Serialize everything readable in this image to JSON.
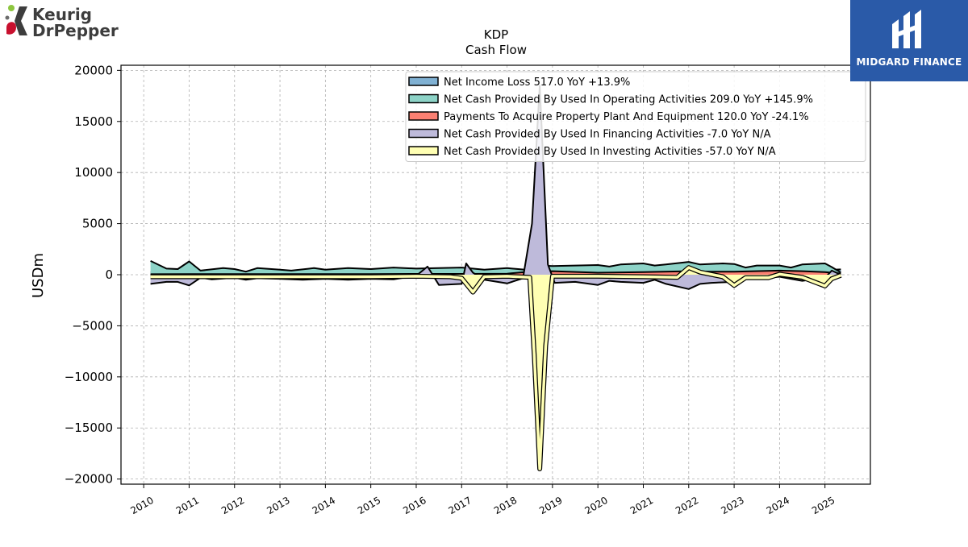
{
  "brand": {
    "left_logo_line1": "Keurig",
    "left_logo_line2": "DrPepper",
    "right_logo_text": "MIDGARD FINANCE"
  },
  "chart_data": {
    "type": "area",
    "title": "KDP",
    "subtitle": "Cash Flow",
    "ylabel": "USDm",
    "xlabel": "",
    "ylim": [
      -20500,
      20500
    ],
    "xlim": [
      2009.5,
      2026.0
    ],
    "yticks": [
      20000,
      15000,
      10000,
      5000,
      0,
      -5000,
      -10000,
      -15000,
      -20000
    ],
    "ytick_labels": [
      "20000",
      "15000",
      "10000",
      "5000",
      "0",
      "−5000",
      "−10000",
      "−15000",
      "−20000"
    ],
    "xticks": [
      2010,
      2011,
      2012,
      2013,
      2014,
      2015,
      2016,
      2017,
      2018,
      2019,
      2020,
      2021,
      2022,
      2023,
      2024,
      2025
    ],
    "xtick_labels": [
      "2010",
      "2011",
      "2012",
      "2013",
      "2014",
      "2015",
      "2016",
      "2017",
      "2018",
      "2019",
      "2020",
      "2021",
      "2022",
      "2023",
      "2024",
      "2025"
    ],
    "grid": true,
    "legend_position": "top-right",
    "series": [
      {
        "name": "Net Income Loss",
        "legend_label": "Net Income Loss  517.0 YoY +13.9%",
        "color": "#80b1d3",
        "points": [
          [
            2010.15,
            250
          ],
          [
            2010.5,
            220
          ],
          [
            2011,
            300
          ],
          [
            2011.5,
            250
          ],
          [
            2012,
            300
          ],
          [
            2012.5,
            280
          ],
          [
            2013,
            300
          ],
          [
            2013.5,
            330
          ],
          [
            2014,
            320
          ],
          [
            2014.5,
            350
          ],
          [
            2015,
            350
          ],
          [
            2015.5,
            380
          ],
          [
            2016,
            330
          ],
          [
            2016.5,
            400
          ],
          [
            2017,
            380
          ],
          [
            2017.5,
            420
          ],
          [
            2018,
            450
          ],
          [
            2018.5,
            500
          ],
          [
            2019,
            350
          ],
          [
            2019.5,
            380
          ],
          [
            2020,
            420
          ],
          [
            2020.5,
            450
          ],
          [
            2021,
            500
          ],
          [
            2021.5,
            520
          ],
          [
            2022,
            480
          ],
          [
            2022.5,
            500
          ],
          [
            2023,
            700
          ],
          [
            2023.5,
            550
          ],
          [
            2024,
            800
          ],
          [
            2024.5,
            600
          ],
          [
            2025,
            450
          ],
          [
            2025.35,
            517
          ]
        ]
      },
      {
        "name": "Net Cash Provided By Used In Operating Activities",
        "legend_label": "Net Cash Provided By Used In Operating Activities  209.0 YoY +145.9%",
        "color": "#8dd3c7",
        "points": [
          [
            2010.15,
            1350
          ],
          [
            2010.5,
            600
          ],
          [
            2010.75,
            550
          ],
          [
            2011,
            1300
          ],
          [
            2011.25,
            400
          ],
          [
            2011.75,
            650
          ],
          [
            2012,
            550
          ],
          [
            2012.25,
            300
          ],
          [
            2012.5,
            650
          ],
          [
            2013,
            500
          ],
          [
            2013.25,
            400
          ],
          [
            2013.75,
            650
          ],
          [
            2014,
            500
          ],
          [
            2014.5,
            650
          ],
          [
            2015,
            550
          ],
          [
            2015.5,
            700
          ],
          [
            2016,
            600
          ],
          [
            2016.5,
            650
          ],
          [
            2017,
            700
          ],
          [
            2017.5,
            500
          ],
          [
            2018,
            650
          ],
          [
            2018.5,
            450
          ],
          [
            2018.75,
            900
          ],
          [
            2019,
            850
          ],
          [
            2019.5,
            900
          ],
          [
            2020,
            950
          ],
          [
            2020.25,
            800
          ],
          [
            2020.5,
            1000
          ],
          [
            2021,
            1100
          ],
          [
            2021.25,
            900
          ],
          [
            2021.5,
            1000
          ],
          [
            2022,
            1250
          ],
          [
            2022.25,
            1000
          ],
          [
            2022.75,
            1100
          ],
          [
            2023,
            1050
          ],
          [
            2023.25,
            700
          ],
          [
            2023.5,
            900
          ],
          [
            2024,
            900
          ],
          [
            2024.25,
            700
          ],
          [
            2024.5,
            1000
          ],
          [
            2025,
            1100
          ],
          [
            2025.15,
            750
          ],
          [
            2025.35,
            209
          ]
        ]
      },
      {
        "name": "Payments To Acquire Property Plant And Equipment",
        "legend_label": "Payments To Acquire Property Plant And Equipment  120.0 YoY -24.1%",
        "color": "#fb8072",
        "points": [
          [
            2010.15,
            50
          ],
          [
            2011,
            60
          ],
          [
            2012,
            60
          ],
          [
            2013,
            60
          ],
          [
            2014,
            60
          ],
          [
            2015,
            60
          ],
          [
            2016,
            80
          ],
          [
            2017,
            80
          ],
          [
            2018,
            100
          ],
          [
            2018.5,
            300
          ],
          [
            2019,
            350
          ],
          [
            2020,
            200
          ],
          [
            2021,
            250
          ],
          [
            2022,
            350
          ],
          [
            2022.5,
            300
          ],
          [
            2023,
            300
          ],
          [
            2024,
            400
          ],
          [
            2024.5,
            350
          ],
          [
            2025,
            250
          ],
          [
            2025.35,
            120
          ]
        ]
      },
      {
        "name": "Net Cash Provided By Used In Financing Activities",
        "legend_label": "Net Cash Provided By Used In Financing Activities  -7.0 YoY N/A",
        "color": "#bebada",
        "points": [
          [
            2010.15,
            -900
          ],
          [
            2010.5,
            -700
          ],
          [
            2010.75,
            -700
          ],
          [
            2011,
            -1050
          ],
          [
            2011.25,
            -300
          ],
          [
            2011.5,
            -450
          ],
          [
            2012,
            -300
          ],
          [
            2012.25,
            -500
          ],
          [
            2012.5,
            -350
          ],
          [
            2013,
            -400
          ],
          [
            2013.5,
            -500
          ],
          [
            2014,
            -400
          ],
          [
            2014.5,
            -500
          ],
          [
            2015,
            -400
          ],
          [
            2015.5,
            -450
          ],
          [
            2016,
            -100
          ],
          [
            2016.25,
            800
          ],
          [
            2016.5,
            -1000
          ],
          [
            2017,
            -900
          ],
          [
            2017.1,
            1100
          ],
          [
            2017.25,
            200
          ],
          [
            2017.5,
            -500
          ],
          [
            2018,
            -850
          ],
          [
            2018.35,
            -350
          ],
          [
            2018.55,
            5000
          ],
          [
            2018.72,
            18500
          ],
          [
            2018.9,
            1000
          ],
          [
            2019.05,
            -800
          ],
          [
            2019.5,
            -700
          ],
          [
            2020,
            -1000
          ],
          [
            2020.25,
            -600
          ],
          [
            2020.5,
            -700
          ],
          [
            2021,
            -800
          ],
          [
            2021.25,
            -500
          ],
          [
            2021.5,
            -900
          ],
          [
            2022,
            -1400
          ],
          [
            2022.25,
            -900
          ],
          [
            2022.5,
            -800
          ],
          [
            2023,
            -700
          ],
          [
            2023.25,
            -300
          ],
          [
            2023.5,
            -400
          ],
          [
            2024,
            -200
          ],
          [
            2024.25,
            -400
          ],
          [
            2024.5,
            -600
          ],
          [
            2025,
            -300
          ],
          [
            2025.15,
            400
          ],
          [
            2025.35,
            -7
          ]
        ]
      },
      {
        "name": "Net Cash Provided By Used In Investing Activities",
        "legend_label": "Net Cash Provided By Used In Investing Activities  -57.0 YoY N/A",
        "color": "#ffffb3",
        "points": [
          [
            2010.15,
            -200
          ],
          [
            2011,
            -200
          ],
          [
            2012,
            -200
          ],
          [
            2013,
            -200
          ],
          [
            2014,
            -200
          ],
          [
            2015,
            -200
          ],
          [
            2016,
            -150
          ],
          [
            2016.75,
            -200
          ],
          [
            2017,
            -350
          ],
          [
            2017.25,
            -1700
          ],
          [
            2017.5,
            -200
          ],
          [
            2018,
            -150
          ],
          [
            2018.5,
            -250
          ],
          [
            2018.6,
            -8000
          ],
          [
            2018.72,
            -19000
          ],
          [
            2018.85,
            -7000
          ],
          [
            2019,
            -150
          ],
          [
            2020,
            -150
          ],
          [
            2021,
            -200
          ],
          [
            2021.75,
            -250
          ],
          [
            2022,
            700
          ],
          [
            2022.25,
            250
          ],
          [
            2022.75,
            -200
          ],
          [
            2023,
            -1050
          ],
          [
            2023.25,
            -300
          ],
          [
            2023.75,
            -300
          ],
          [
            2024,
            50
          ],
          [
            2024.5,
            -250
          ],
          [
            2025,
            -1100
          ],
          [
            2025.15,
            -400
          ],
          [
            2025.35,
            -57
          ]
        ]
      }
    ]
  }
}
